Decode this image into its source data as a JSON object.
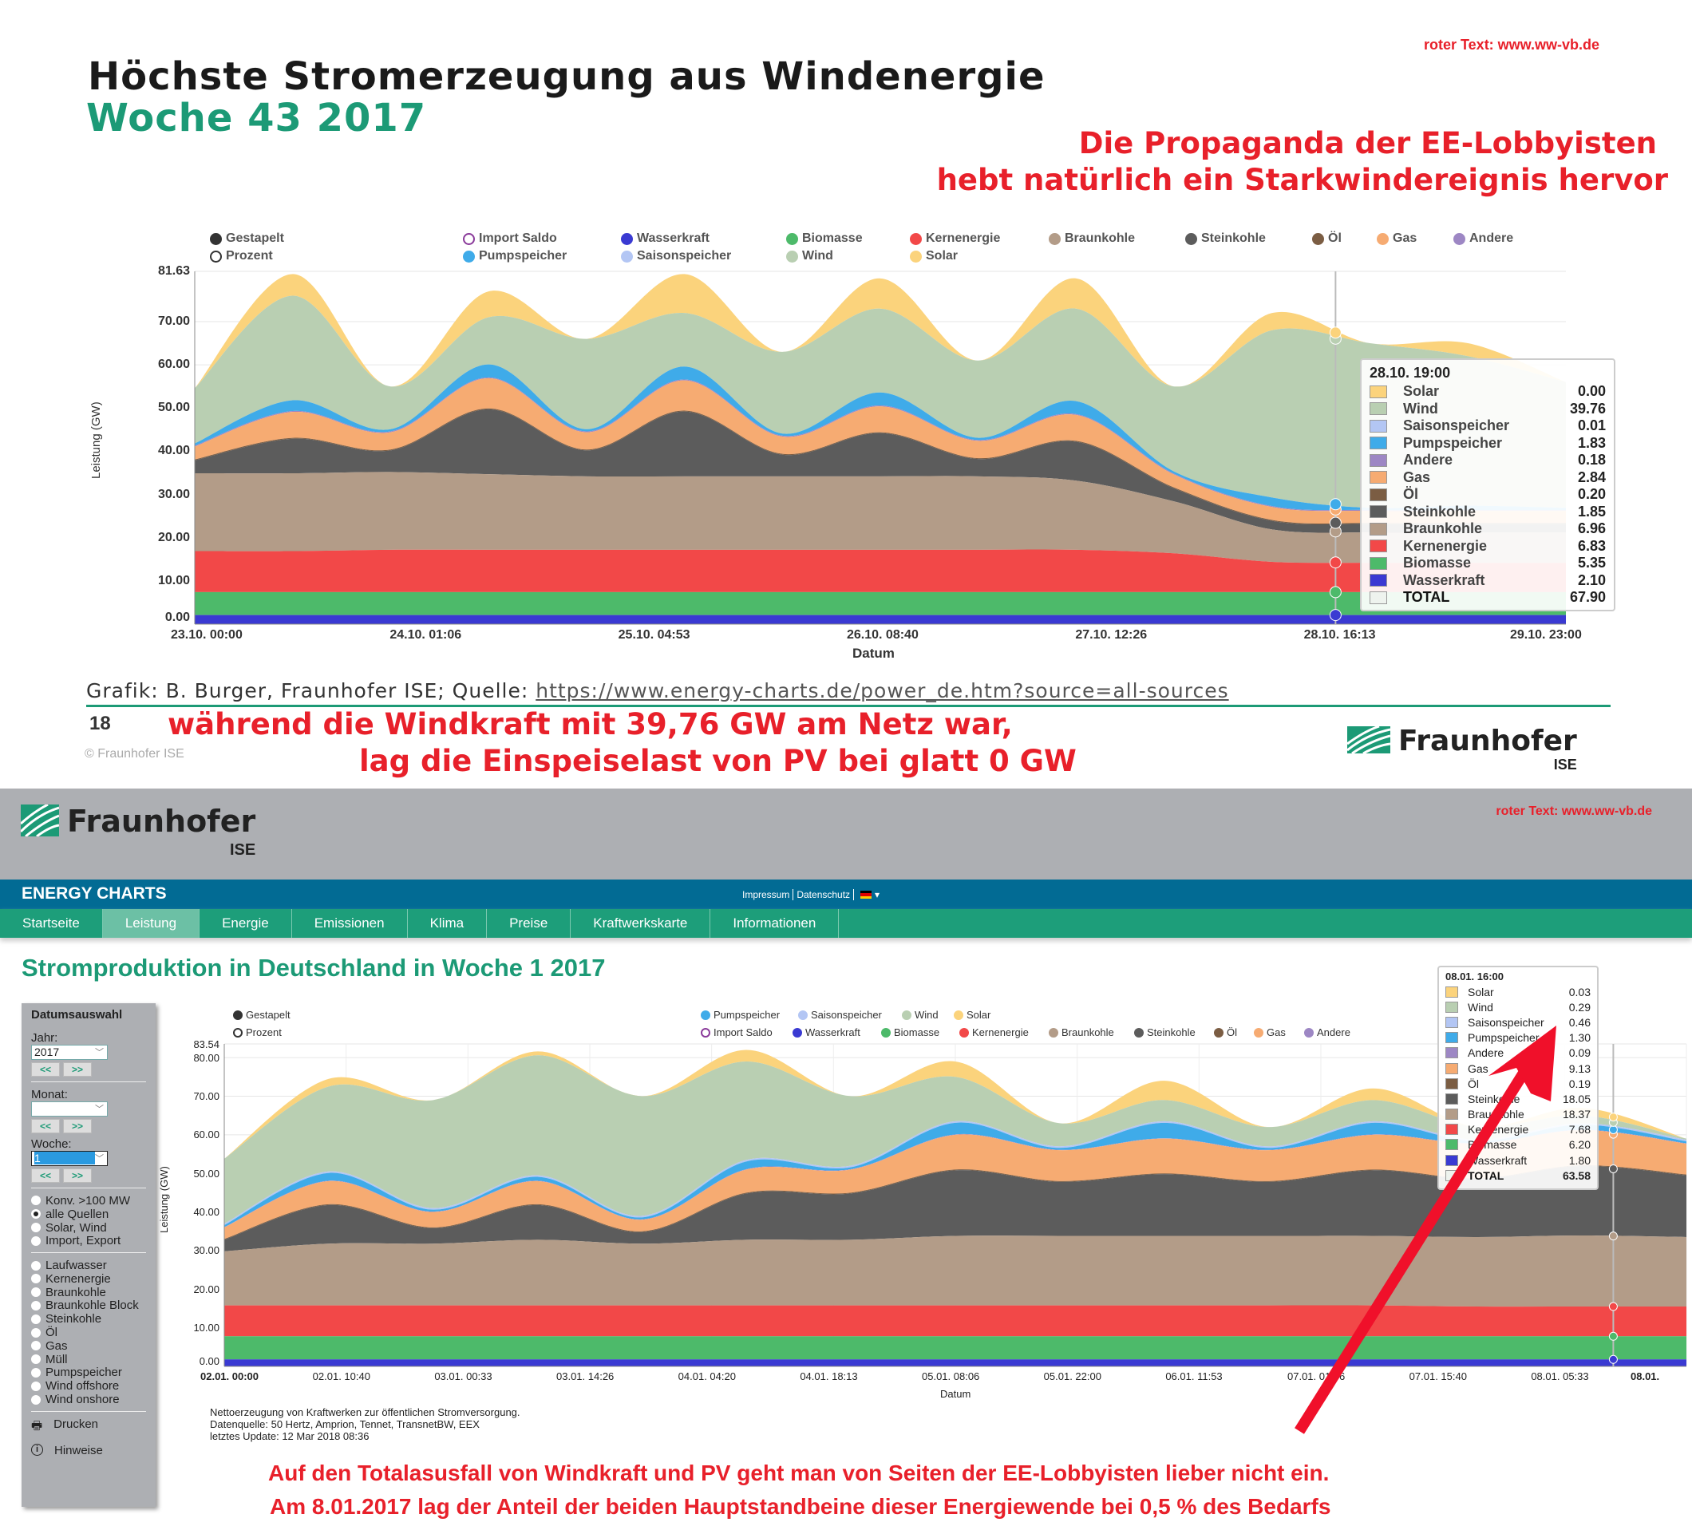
{
  "slide": {
    "watermark": "roter Text: www.ww-vb.de",
    "title": "Höchste Stromerzeugung aus Windenergie",
    "subtitle": "Woche 43 2017",
    "red_heading": [
      "Die Propaganda der EE-Lobbyisten",
      "hebt natürlich ein Starkwindereignis hervor"
    ],
    "credit_prefix": "Grafik: B. Burger, Fraunhofer ISE; Quelle: ",
    "credit_link": "https://www.energy-charts.de/power_de.htm?source=all-sources",
    "page_number": "18",
    "copyright": "© Fraunhofer ISE",
    "red_footer": [
      "während die Windkraft mit 39,76 GW am Netz war,",
      "lag die Einspeiselast von PV bei glatt 0 GW"
    ],
    "logo_name": "Fraunhofer",
    "logo_sub": "ISE"
  },
  "colors": {
    "Wasserkraft": "#3a3ad2",
    "Biomasse": "#4dba6a",
    "Kernenergie": "#f24848",
    "Braunkohle": "#b39c88",
    "Steinkohle": "#5c5c5c",
    "Öl": "#7b5d43",
    "Gas": "#f6ab72",
    "Andere": "#9d87c4",
    "Pumpspeicher": "#3fabe9",
    "Saisonspeicher": "#b3c6f4",
    "Wind": "#b9cfb2",
    "Solar": "#fbd37c",
    "accent_green": "#1c9a76",
    "header_blue": "#026b94",
    "nav_green": "#1d9e7a",
    "alert_red": "#e8202a"
  },
  "chart_data": [
    {
      "type": "area",
      "stacked": true,
      "title": "Höchste Stromerzeugung aus Windenergie – Woche 43 2017",
      "xlabel": "Datum",
      "ylabel": "Leistung (GW)",
      "ylim": [
        0,
        81.63
      ],
      "yticks": [
        "0.00",
        "10.00",
        "20.00",
        "30.00",
        "40.00",
        "50.00",
        "60.00",
        "70.00",
        "81.63"
      ],
      "xticks": [
        "23.10. 00:00",
        "24.10. 01:06",
        "25.10. 04:53",
        "26.10. 08:40",
        "27.10. 12:26",
        "28.10. 16:13",
        "29.10. 23:00"
      ],
      "x": [
        "23.10. 00:00",
        "23.10. 12:00",
        "24.10. 00:00",
        "24.10. 12:00",
        "25.10. 00:00",
        "25.10. 12:00",
        "26.10. 00:00",
        "26.10. 12:00",
        "27.10. 00:00",
        "27.10. 12:00",
        "28.10. 00:00",
        "28.10. 12:00",
        "29.10. 00:00",
        "29.10. 12:00",
        "29.10. 23:00"
      ],
      "legend": {
        "modes": [
          "Gestapelt",
          "Prozent"
        ],
        "row1": [
          "Import Saldo",
          "Wasserkraft",
          "Biomasse",
          "Kernenergie",
          "Braunkohle",
          "Steinkohle",
          "Öl",
          "Gas",
          "Andere"
        ],
        "row2": [
          "Pumpspeicher",
          "Saisonspeicher",
          "Wind",
          "Solar"
        ]
      },
      "series": [
        {
          "name": "Wasserkraft",
          "values": [
            2.1,
            2.1,
            2.1,
            2.1,
            2.1,
            2.1,
            2.1,
            2.1,
            2.1,
            2.1,
            2.1,
            2.1,
            2.1,
            2.1,
            2.1
          ]
        },
        {
          "name": "Biomasse",
          "values": [
            5.3,
            5.3,
            5.3,
            5.3,
            5.3,
            5.3,
            5.3,
            5.3,
            5.3,
            5.3,
            5.3,
            5.3,
            5.3,
            5.3,
            5.3
          ]
        },
        {
          "name": "Kernenergie",
          "values": [
            9.5,
            9.5,
            9.8,
            9.8,
            9.8,
            9.8,
            9.8,
            9.8,
            9.8,
            9.8,
            9.0,
            7.0,
            6.8,
            6.8,
            6.8
          ]
        },
        {
          "name": "Braunkohle",
          "values": [
            18,
            18,
            18,
            17.5,
            17,
            17,
            17,
            17,
            17,
            16,
            12,
            7.5,
            7,
            7,
            7
          ]
        },
        {
          "name": "Steinkohle",
          "values": [
            3,
            8,
            5,
            15,
            6,
            15,
            5,
            10,
            4,
            9,
            3,
            2,
            2,
            2,
            2
          ]
        },
        {
          "name": "Öl",
          "values": [
            0.2,
            0.2,
            0.2,
            0.2,
            0.2,
            0.2,
            0.2,
            0.2,
            0.2,
            0.2,
            0.2,
            0.2,
            0.2,
            0.2,
            0.2
          ]
        },
        {
          "name": "Gas",
          "values": [
            3,
            6,
            4,
            7,
            4,
            7,
            4,
            6,
            4,
            6,
            3,
            3,
            2.8,
            2.8,
            2.8
          ]
        },
        {
          "name": "Andere",
          "values": [
            0.2,
            0.2,
            0.2,
            0.2,
            0.2,
            0.2,
            0.2,
            0.2,
            0.2,
            0.2,
            0.2,
            0.2,
            0.2,
            0.2,
            0.2
          ]
        },
        {
          "name": "Pumpspeicher",
          "values": [
            0.5,
            2.5,
            0.5,
            3,
            0.5,
            3,
            0.5,
            3,
            0.5,
            3,
            0.5,
            2,
            0.5,
            1,
            0.5
          ]
        },
        {
          "name": "Saisonspeicher",
          "values": [
            0,
            0,
            0,
            0,
            0,
            0,
            0,
            0,
            0,
            0,
            0,
            0,
            0,
            0,
            0
          ]
        },
        {
          "name": "Wind",
          "values": [
            12.8,
            24.2,
            9.9,
            10.9,
            20.9,
            12.4,
            18.9,
            19.4,
            17.9,
            21.4,
            19.7,
            38.7,
            38.1,
            34.6,
            29.1
          ]
        },
        {
          "name": "Solar",
          "values": [
            0,
            5,
            0,
            6,
            0,
            9,
            0,
            7,
            0,
            7,
            0,
            4,
            0,
            3,
            0
          ]
        }
      ],
      "hover_fraction": 0.832,
      "tooltip": {
        "time": "28.10. 19:00",
        "rows": [
          {
            "label": "Solar",
            "value": "0.00"
          },
          {
            "label": "Wind",
            "value": "39.76"
          },
          {
            "label": "Saisonspeicher",
            "value": "0.01"
          },
          {
            "label": "Pumpspeicher",
            "value": "1.83"
          },
          {
            "label": "Andere",
            "value": "0.18"
          },
          {
            "label": "Gas",
            "value": "2.84"
          },
          {
            "label": "Öl",
            "value": "0.20"
          },
          {
            "label": "Steinkohle",
            "value": "1.85"
          },
          {
            "label": "Braunkohle",
            "value": "6.96"
          },
          {
            "label": "Kernenergie",
            "value": "6.83"
          },
          {
            "label": "Biomasse",
            "value": "5.35"
          },
          {
            "label": "Wasserkraft",
            "value": "2.10"
          }
        ],
        "total_label": "TOTAL",
        "total_value": "67.90"
      }
    },
    {
      "type": "area",
      "stacked": true,
      "title": "Stromproduktion in Deutschland in Woche 1 2017",
      "xlabel": "Datum",
      "ylabel": "Leistung (GW)",
      "ylim": [
        0,
        83.54
      ],
      "yticks": [
        "0.00",
        "10.00",
        "20.00",
        "30.00",
        "40.00",
        "50.00",
        "60.00",
        "70.00",
        "80.00",
        "83.54"
      ],
      "xticks": [
        "02.01. 00:00",
        "02.01. 10:40",
        "03.01. 00:33",
        "03.01. 14:26",
        "04.01. 04:20",
        "04.01. 18:13",
        "05.01. 08:06",
        "05.01. 22:00",
        "06.01. 11:53",
        "07.01. 01:46",
        "07.01. 15:40",
        "08.01. 05:33",
        "08.01."
      ],
      "x": [
        "02.01. 00:00",
        "02.01. 12:00",
        "03.01. 00:00",
        "03.01. 12:00",
        "04.01. 00:00",
        "04.01. 12:00",
        "05.01. 00:00",
        "05.01. 12:00",
        "06.01. 00:00",
        "06.01. 12:00",
        "07.01. 00:00",
        "07.01. 12:00",
        "08.01. 00:00",
        "08.01. 12:00",
        "08.01. 23:00"
      ],
      "legend": {
        "modes": [
          "Gestapelt",
          "Prozent"
        ],
        "row1": [
          "Import Saldo",
          "Wasserkraft",
          "Biomasse",
          "Kernenergie",
          "Braunkohle",
          "Steinkohle",
          "Öl",
          "Gas",
          "Andere",
          "Pumpspeicher",
          "Saisonspeicher",
          "Wind",
          "Solar"
        ]
      },
      "series": [
        {
          "name": "Wasserkraft",
          "values": [
            1.8,
            1.8,
            1.8,
            1.8,
            1.8,
            1.8,
            1.8,
            1.8,
            1.8,
            1.8,
            1.8,
            1.8,
            1.8,
            1.8,
            1.8
          ]
        },
        {
          "name": "Biomasse",
          "values": [
            6,
            6,
            6,
            6,
            6,
            6,
            6,
            6,
            6,
            6,
            6,
            6,
            6,
            6,
            6
          ]
        },
        {
          "name": "Kernenergie",
          "values": [
            8,
            8,
            8,
            8,
            8,
            8,
            8,
            8,
            8,
            8,
            8,
            8,
            7.7,
            7.7,
            7.7
          ]
        },
        {
          "name": "Braunkohle",
          "values": [
            14,
            16,
            16,
            17,
            16,
            17,
            17,
            18,
            18,
            18,
            18,
            18,
            18,
            18.4,
            18
          ]
        },
        {
          "name": "Steinkohle",
          "values": [
            3,
            10,
            4,
            9,
            3,
            12,
            12,
            17,
            14,
            16,
            14,
            17,
            15,
            18,
            16
          ]
        },
        {
          "name": "Öl",
          "values": [
            0.2,
            0.2,
            0.2,
            0.2,
            0.2,
            0.2,
            0.2,
            0.2,
            0.2,
            0.2,
            0.2,
            0.2,
            0.2,
            0.2,
            0.2
          ]
        },
        {
          "name": "Gas",
          "values": [
            3,
            6,
            4,
            6,
            3,
            6,
            6,
            9,
            8,
            9,
            8,
            9,
            9,
            9.1,
            8
          ]
        },
        {
          "name": "Andere",
          "values": [
            0.1,
            0.1,
            0.1,
            0.1,
            0.1,
            0.1,
            0.1,
            0.1,
            0.1,
            0.1,
            0.1,
            0.1,
            0.1,
            0.1,
            0.1
          ]
        },
        {
          "name": "Pumpspeicher",
          "values": [
            0.5,
            2,
            0.5,
            1,
            0.5,
            2,
            0.5,
            3,
            0.5,
            4,
            0.5,
            3,
            0.5,
            1.3,
            0.5
          ]
        },
        {
          "name": "Saisonspeicher",
          "values": [
            0.4,
            0.4,
            0.4,
            0.4,
            0.4,
            0.4,
            0.4,
            0.4,
            0.4,
            0.4,
            0.4,
            0.4,
            0.4,
            0.4,
            0.4
          ]
        },
        {
          "name": "Wind",
          "values": [
            16.8,
            22,
            28,
            31.1,
            31,
            25.5,
            18,
            11.5,
            6,
            5.5,
            5,
            5.5,
            3.3,
            2,
            0.3
          ]
        },
        {
          "name": "Solar",
          "values": [
            0,
            2,
            0,
            1,
            0,
            3,
            0,
            4,
            0,
            5,
            0,
            3,
            0,
            2,
            0
          ]
        }
      ],
      "hover_fraction": 0.95,
      "tooltip": {
        "time": "08.01. 16:00",
        "rows": [
          {
            "label": "Solar",
            "value": "0.03"
          },
          {
            "label": "Wind",
            "value": "0.29"
          },
          {
            "label": "Saisonspeicher",
            "value": "0.46"
          },
          {
            "label": "Pumpspeicher",
            "value": "1.30"
          },
          {
            "label": "Andere",
            "value": "0.09"
          },
          {
            "label": "Gas",
            "value": "9.13"
          },
          {
            "label": "Öl",
            "value": "0.19"
          },
          {
            "label": "Steinkohle",
            "value": "18.05"
          },
          {
            "label": "Braunkohle",
            "value": "18.37"
          },
          {
            "label": "Kernenergie",
            "value": "7.68"
          },
          {
            "label": "Biomasse",
            "value": "6.20"
          },
          {
            "label": "Wasserkraft",
            "value": "1.80"
          }
        ],
        "total_label": "TOTAL",
        "total_value": "63.58"
      }
    }
  ],
  "web": {
    "watermark": "roter Text: www.ww-vb.de",
    "logo_name": "Fraunhofer",
    "logo_sub": "ISE",
    "brand": "ENERGY CHARTS",
    "top_links": [
      "Impressum",
      "Datenschutz"
    ],
    "nav": [
      "Startseite",
      "Leistung",
      "Energie",
      "Emissionen",
      "Klima",
      "Preise",
      "Kraftwerkskarte",
      "Informationen"
    ],
    "page_title": "Stromproduktion in Deutschland in Woche 1 2017",
    "sidebar": {
      "heading": "Datumsauswahl",
      "year_label": "Jahr:",
      "year_value": "2017",
      "month_label": "Monat:",
      "month_value": "",
      "week_label": "Woche:",
      "week_value": "1",
      "prev": "<<",
      "next": ">>",
      "modes": [
        "Konv. >100 MW",
        "alle Quellen",
        "Solar, Wind",
        "Import, Export"
      ],
      "sources": [
        "Laufwasser",
        "Kernenergie",
        "Braunkohle",
        "Braunkohle Block",
        "Steinkohle",
        "Öl",
        "Gas",
        "Müll",
        "Pumpspeicher",
        "Wind offshore",
        "Wind onshore"
      ],
      "print": "Drucken",
      "hints": "Hinweise"
    },
    "footnote": [
      "Nettoerzeugung von Kraftwerken zur öffentlichen Stromversorgung.",
      "Datenquelle: 50 Hertz, Amprion, Tennet, TransnetBW, EEX",
      "letztes Update: 12 Mar 2018 08:36"
    ],
    "red_footer": [
      "Auf den Totalasusfall von Windkraft und PV geht man von Seiten der EE-Lobbyisten lieber nicht ein.",
      "Am 8.01.2017 lag der Anteil der beiden Hauptstandbeine dieser Energiewende bei 0,5 % des Bedarfs"
    ]
  }
}
